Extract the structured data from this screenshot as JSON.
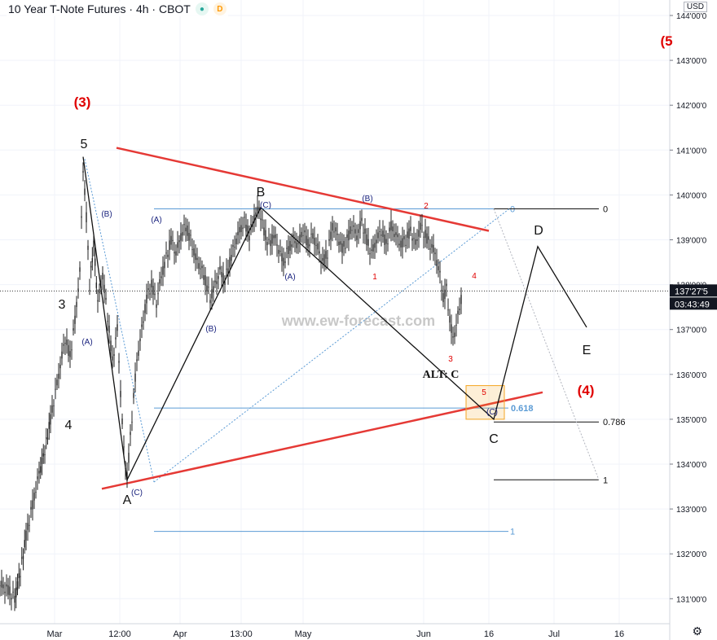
{
  "header": {
    "title": "10 Year T-Note Futures · 4h · CBOT",
    "eye_icon": "eye-icon",
    "d_badge": "D"
  },
  "axis": {
    "currency": "USD",
    "price_labels": [
      "144'00'0",
      "143'00'0",
      "142'00'0",
      "141'00'0",
      "140'00'0",
      "139'00'0",
      "138'00'0",
      "137'00'0",
      "136'00'0",
      "135'00'0",
      "134'00'0",
      "133'00'0",
      "132'00'0",
      "131'00'0"
    ],
    "time_labels": [
      "Mar",
      "12:00",
      "Apr",
      "13:00",
      "May",
      "Jun",
      "16",
      "Jul",
      "16"
    ],
    "current_price": "137'27'5",
    "countdown": "03:43:49"
  },
  "watermark": "www.ew-forecast.com",
  "fib_labels": {
    "top": "0",
    "top_right": "0",
    "mid": "0.618",
    "bottom": "1",
    "right_0786": "0.786",
    "right_1": "1"
  },
  "wave_labels": {
    "black": [
      "5",
      "3",
      "4",
      "A",
      "B",
      "C",
      "D",
      "E"
    ],
    "alt": "ALT: C",
    "red_big": [
      "(3)",
      "(4)",
      "(5"
    ],
    "red_small": [
      "2",
      "1",
      "4",
      "3",
      "5"
    ],
    "blue": [
      "(B)",
      "(A)",
      "(C)",
      "(A)",
      "(B)",
      "(A)",
      "(B)",
      "(C)",
      "(C)"
    ]
  },
  "colors": {
    "candle": "#222222",
    "trendline": "#e53935",
    "fib": "#5b9bd5",
    "wave_black": "#111111",
    "wave_red": "#e00000",
    "wave_blue": "#1a237e",
    "box": "#f5a623",
    "grid": "#f0f3fa"
  },
  "chart_data": {
    "type": "candlestick",
    "title": "10 Year T-Note Futures · 4h · CBOT",
    "ylim": [
      130.5,
      144.3
    ],
    "price_levels": [
      144,
      143,
      142,
      141,
      140,
      139,
      138,
      137,
      136,
      135,
      134,
      133,
      132,
      131
    ],
    "fib_levels": {
      "0": 139.69,
      "0.618": 135.25,
      "1": 132.5,
      "0.786": 134.94,
      "1_right": 133.65
    },
    "current_price": 137.86,
    "path_points": [
      [
        0,
        131.3
      ],
      [
        10,
        131.2
      ],
      [
        18,
        131.0
      ],
      [
        25,
        131.6
      ],
      [
        32,
        132.4
      ],
      [
        40,
        133.1
      ],
      [
        48,
        133.8
      ],
      [
        55,
        134.3
      ],
      [
        62,
        135.0
      ],
      [
        68,
        135.6
      ],
      [
        74,
        136.2
      ],
      [
        80,
        136.8
      ],
      [
        86,
        136.4
      ],
      [
        92,
        137.2
      ],
      [
        98,
        138.3
      ],
      [
        102,
        140.6
      ],
      [
        106,
        139.5
      ],
      [
        110,
        138.0
      ],
      [
        115,
        138.9
      ],
      [
        120,
        137.6
      ],
      [
        126,
        138.2
      ],
      [
        132,
        137.3
      ],
      [
        138,
        136.3
      ],
      [
        144,
        137.0
      ],
      [
        148,
        135.6
      ],
      [
        152,
        134.3
      ],
      [
        156,
        133.7
      ],
      [
        160,
        134.6
      ],
      [
        164,
        135.5
      ],
      [
        168,
        136.3
      ],
      [
        174,
        137.0
      ],
      [
        180,
        137.7
      ],
      [
        186,
        138.0
      ],
      [
        192,
        137.6
      ],
      [
        198,
        138.2
      ],
      [
        204,
        138.6
      ],
      [
        210,
        139.0
      ],
      [
        216,
        138.7
      ],
      [
        222,
        139.1
      ],
      [
        228,
        139.3
      ],
      [
        234,
        139.0
      ],
      [
        240,
        138.6
      ],
      [
        246,
        138.4
      ],
      [
        252,
        138.1
      ],
      [
        258,
        137.7
      ],
      [
        264,
        138.0
      ],
      [
        270,
        138.3
      ],
      [
        276,
        138.1
      ],
      [
        282,
        138.5
      ],
      [
        288,
        138.9
      ],
      [
        294,
        139.2
      ],
      [
        300,
        139.4
      ],
      [
        306,
        139.1
      ],
      [
        312,
        139.5
      ],
      [
        318,
        139.7
      ],
      [
        324,
        139.2
      ],
      [
        330,
        138.9
      ],
      [
        336,
        139.1
      ],
      [
        342,
        138.8
      ],
      [
        348,
        138.5
      ],
      [
        354,
        138.8
      ],
      [
        360,
        139.0
      ],
      [
        366,
        138.9
      ],
      [
        372,
        139.2
      ],
      [
        378,
        138.9
      ],
      [
        384,
        139.1
      ],
      [
        390,
        138.8
      ],
      [
        396,
        138.5
      ],
      [
        402,
        138.7
      ],
      [
        408,
        139.3
      ],
      [
        414,
        139.1
      ],
      [
        420,
        138.8
      ],
      [
        426,
        139.0
      ],
      [
        432,
        139.3
      ],
      [
        438,
        139.1
      ],
      [
        444,
        139.4
      ],
      [
        450,
        139.0
      ],
      [
        456,
        138.7
      ],
      [
        462,
        139.0
      ],
      [
        468,
        139.2
      ],
      [
        474,
        138.9
      ],
      [
        480,
        139.3
      ],
      [
        486,
        139.1
      ],
      [
        492,
        138.9
      ],
      [
        498,
        139.0
      ],
      [
        504,
        139.2
      ],
      [
        510,
        138.9
      ],
      [
        516,
        139.3
      ],
      [
        522,
        139.1
      ],
      [
        528,
        138.9
      ],
      [
        534,
        138.7
      ],
      [
        540,
        138.2
      ],
      [
        544,
        137.7
      ],
      [
        548,
        137.9
      ],
      [
        552,
        137.2
      ],
      [
        556,
        136.8
      ],
      [
        560,
        137.1
      ],
      [
        564,
        137.5
      ],
      [
        568,
        137.86
      ]
    ],
    "wave_lines": [
      [
        [
          102,
          140.85
        ],
        [
          156,
          133.65
        ],
        [
          320,
          139.72
        ],
        [
          606,
          135.0
        ],
        [
          660,
          138.85
        ],
        [
          720,
          137.05
        ]
      ]
    ],
    "trendlines": [
      {
        "from": [
          143,
          141.05
        ],
        "to": [
          600,
          139.2
        ]
      },
      {
        "from": [
          125,
          133.45
        ],
        "to": [
          666,
          135.6
        ]
      }
    ]
  }
}
